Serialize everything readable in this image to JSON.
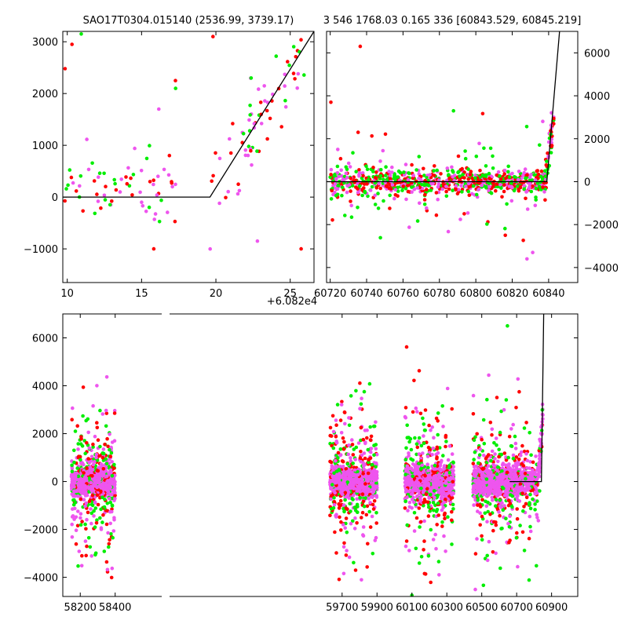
{
  "chart_data": [
    {
      "type": "scatter",
      "panel": "top-left",
      "title": "SAO17T0304.015140 (2536.99, 3739.17)",
      "xlim": [
        9.7,
        26.6
      ],
      "ylim": [
        -1650,
        3200
      ],
      "xticks": [
        10,
        15,
        20,
        25
      ],
      "yticks": [
        -1000,
        0,
        1000,
        2000,
        3000
      ],
      "ytick_side": "left",
      "colors": [
        "#00ee00",
        "#ff0000",
        "#ee55ee"
      ],
      "model_line": {
        "x": [
          9.7,
          19.6,
          26.6
        ],
        "y": [
          0,
          0,
          3200
        ]
      },
      "clusters": [
        {
          "x": [
            9.8,
            17.3
          ],
          "center": 150,
          "spread": 320,
          "outliers": [
            -1000,
            2950,
            2480,
            2250,
            2100,
            1700,
            3150
          ]
        },
        {
          "x": [
            19.6,
            26.0
          ],
          "center": 900,
          "spread": 600,
          "outliers": [
            -1000,
            -850,
            2300,
            3100
          ]
        }
      ]
    },
    {
      "type": "scatter",
      "panel": "top-right",
      "title": "3 546 1768.03 0.165 336 [60843.529, 60845.219]",
      "x_offset_label": "+6.082e4",
      "xlim": [
        60718,
        60856
      ],
      "ylim": [
        -4700,
        7000
      ],
      "xticks": [
        60720,
        60740,
        60760,
        60780,
        60800,
        60820,
        60840
      ],
      "yticks": [
        -4000,
        -2000,
        0,
        2000,
        4000,
        6000
      ],
      "ytick_side": "right",
      "colors": [
        "#00ee00",
        "#ff0000",
        "#ee55ee"
      ],
      "model_line": {
        "x": [
          60718,
          60839,
          60846
        ],
        "y": [
          0,
          0,
          7000
        ]
      },
      "clusters": [
        {
          "x": [
            60720,
            60843
          ],
          "center": 0,
          "spread": 280,
          "outliers": [
            -3600,
            -3300,
            3700,
            3300,
            -1200,
            6300,
            1500,
            -2500
          ]
        }
      ]
    },
    {
      "type": "scatter",
      "panel": "bottom",
      "xlim": [
        58100,
        61050
      ],
      "ylim": [
        -4800,
        7000
      ],
      "xticks": [
        58200,
        58400,
        59700,
        59900,
        60100,
        60300,
        60500,
        60700,
        60900
      ],
      "yticks": [
        -4000,
        -2000,
        0,
        2000,
        4000,
        6000
      ],
      "ytick_side": "left",
      "colors": [
        "#00ee00",
        "#ff0000",
        "#ee55ee"
      ],
      "model_line": {
        "x": [
          60660,
          60842,
          60855
        ],
        "y": [
          0,
          0,
          7000
        ]
      },
      "seasons": [
        {
          "x": [
            58150,
            58400
          ]
        },
        {
          "x": [
            59630,
            59900
          ]
        },
        {
          "x": [
            60060,
            60340
          ]
        },
        {
          "x": [
            60450,
            60720
          ]
        },
        {
          "x": [
            60720,
            60850
          ]
        }
      ]
    }
  ]
}
